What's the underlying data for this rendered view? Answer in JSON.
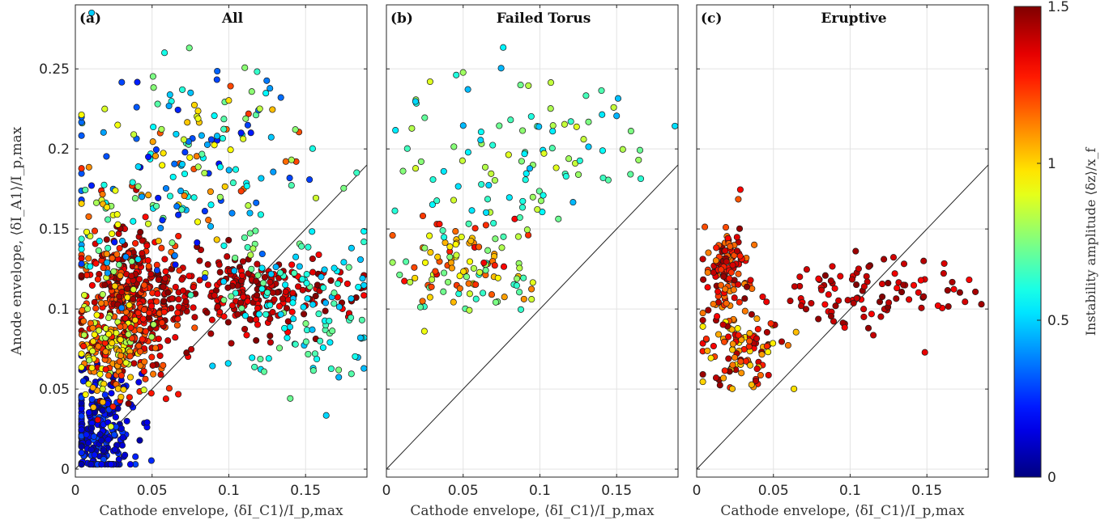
{
  "chart_data": {
    "type": "scatter",
    "shared": {
      "xlabel": "Cathode envelope, ⟨δI_C1⟩/I_p,max",
      "ylabel": "Anode envelope, ⟨δI_A1⟩/I_p,max",
      "xlim": [
        0,
        0.19
      ],
      "ylim": [
        -0.005,
        0.29
      ],
      "xticks": [
        "0",
        "0.05",
        "0.1",
        "0.15"
      ],
      "yticks": [
        "0",
        "0.05",
        "0.1",
        "0.15",
        "0.2",
        "0.25"
      ],
      "grid": true,
      "reference_line": "y = x"
    },
    "panels": [
      {
        "tag": "(a)",
        "title": "All",
        "n_points": 1400
      },
      {
        "tag": "(b)",
        "title": "Failed Torus",
        "n_points": 230
      },
      {
        "tag": "(c)",
        "title": "Eruptive",
        "n_points": 330
      }
    ],
    "colorbar": {
      "label": "Instability amplitude ⟨δz⟩/x_f",
      "range": [
        0,
        1.5
      ],
      "ticks": [
        "0",
        "0.5",
        "1",
        "1.5"
      ],
      "colormap": "jet"
    }
  }
}
